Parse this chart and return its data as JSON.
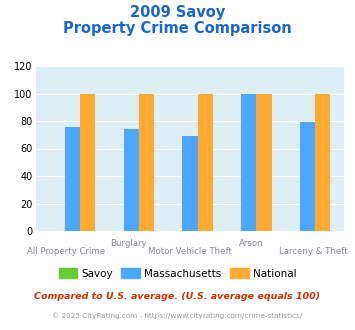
{
  "title_line1": "2009 Savoy",
  "title_line2": "Property Crime Comparison",
  "categories": [
    "All Property Crime",
    "Burglary",
    "Motor Vehicle Theft",
    "Arson",
    "Larceny & Theft"
  ],
  "savoy": [
    0,
    0,
    0,
    0,
    0
  ],
  "massachusetts": [
    76,
    74,
    69,
    100,
    79
  ],
  "national": [
    100,
    100,
    100,
    100,
    100
  ],
  "color_savoy": "#66cc33",
  "color_massachusetts": "#4da6ff",
  "color_national": "#ffaa33",
  "title_color": "#1a66cc",
  "bg_color": "#ddeef5",
  "ylim": [
    0,
    120
  ],
  "yticks": [
    0,
    20,
    40,
    60,
    80,
    100,
    120
  ],
  "footnote1": "Compared to U.S. average. (U.S. average equals 100)",
  "footnote2": "© 2025 CityRating.com - https://www.cityrating.com/crime-statistics/",
  "footnote1_color": "#cc3300",
  "footnote2_color": "#999999",
  "legend_labels": [
    "Savoy",
    "Massachusetts",
    "National"
  ]
}
